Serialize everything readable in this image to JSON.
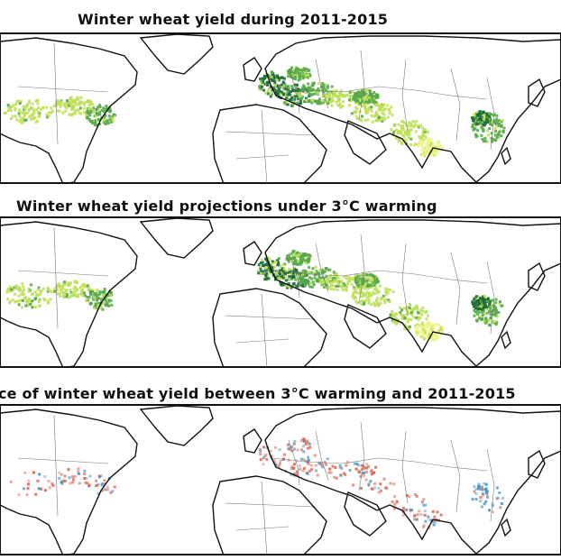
{
  "panels": [
    {
      "title": "Winter wheat yield during 2011-2015",
      "variant": "yield"
    },
    {
      "title": "Winter wheat yield projections under 3°C warming",
      "variant": "yield"
    },
    {
      "title": "ce of winter wheat yield between 3°C warming and 2011-2015",
      "variant": "difference"
    }
  ],
  "colors": {
    "coast": "#111111",
    "border": "#777777",
    "yield_high": "#1d6b3a",
    "yield_mid": "#58a84a",
    "yield_low": "#bfe05a",
    "yield_min": "#eef58a",
    "diff_loss": "#d6604d",
    "diff_gain": "#4393c3"
  }
}
